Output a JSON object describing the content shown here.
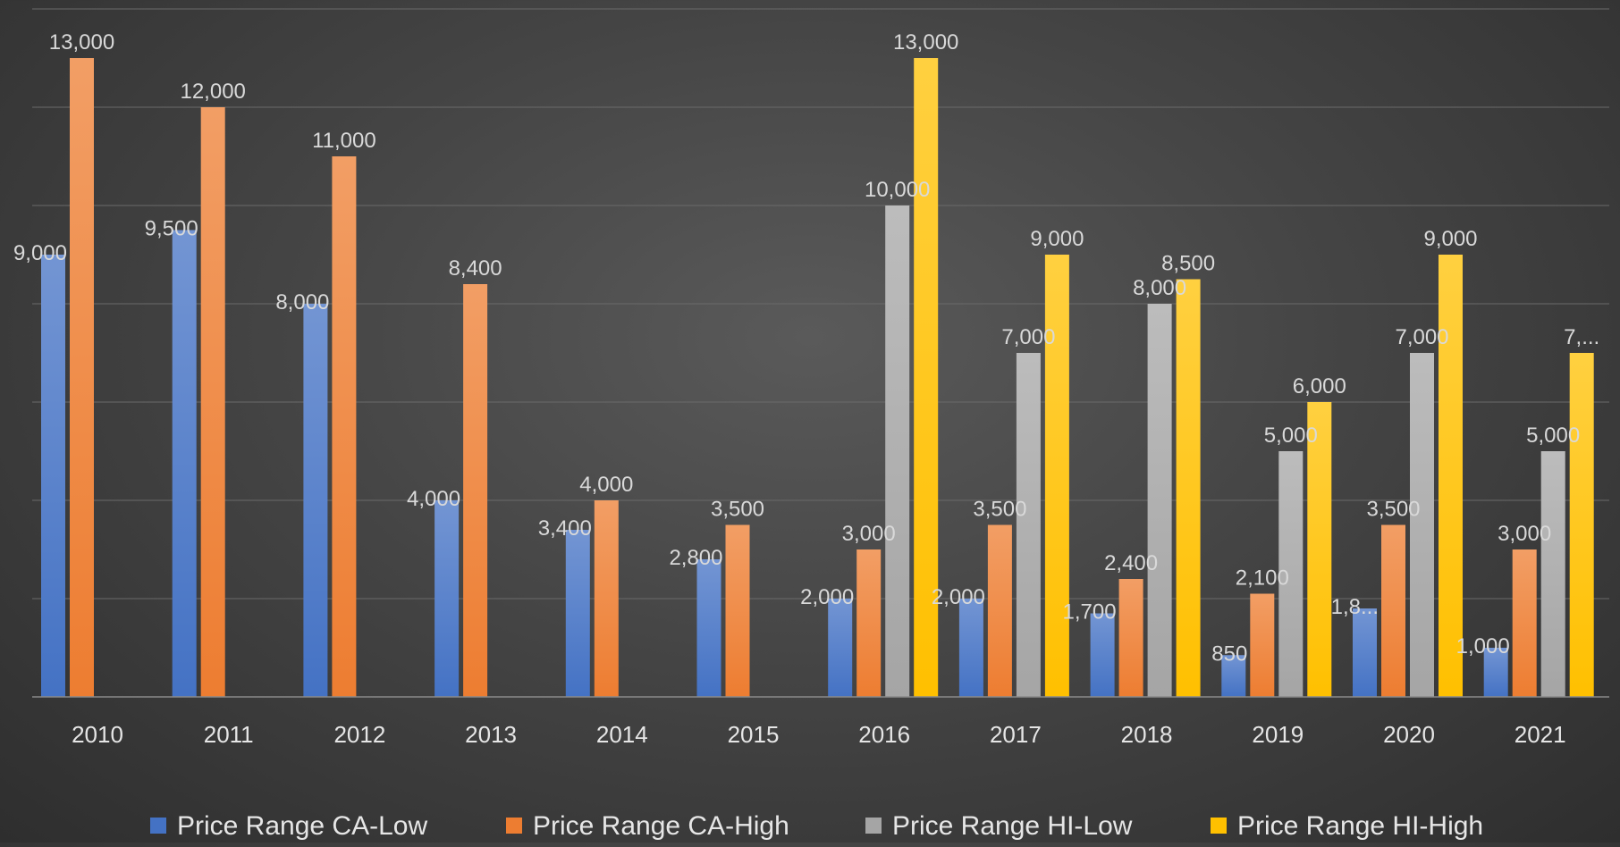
{
  "chart_data": {
    "type": "bar",
    "title": "",
    "xlabel": "",
    "ylabel": "",
    "categories": [
      "2010",
      "2011",
      "2012",
      "2013",
      "2014",
      "2015",
      "2016",
      "2017",
      "2018",
      "2019",
      "2020",
      "2021"
    ],
    "ylim": [
      0,
      14000
    ],
    "grid": true,
    "legend_position": "bottom",
    "series": [
      {
        "name": "Price Range CA-Low",
        "color": "#4472C4",
        "values": [
          9000,
          9500,
          8000,
          4000,
          3400,
          2800,
          2000,
          2000,
          1700,
          850,
          1800,
          1000
        ],
        "labels": [
          "9,000",
          "9,500",
          "8,000",
          "4,000",
          "3,400",
          "2,800",
          "2,000",
          "2,000",
          "1,700",
          "850",
          "1,8...",
          "1,000"
        ]
      },
      {
        "name": "Price Range CA-High",
        "color": "#ED7D31",
        "values": [
          13000,
          12000,
          11000,
          8400,
          4000,
          3500,
          3000,
          3500,
          2400,
          2100,
          3500,
          3000
        ],
        "labels": [
          "13,000",
          "12,000",
          "11,000",
          "8,400",
          "4,000",
          "3,500",
          "3,000",
          "3,500",
          "2,400",
          "2,100",
          "3,500",
          "3,000"
        ]
      },
      {
        "name": "Price Range HI-Low",
        "color": "#A5A5A5",
        "values": [
          null,
          null,
          null,
          null,
          null,
          null,
          10000,
          7000,
          8000,
          5000,
          7000,
          5000
        ],
        "labels": [
          "",
          "",
          "",
          "",
          "",
          "",
          "10,000",
          "7,000",
          "8,000",
          "5,000",
          "7,000",
          "5,000"
        ]
      },
      {
        "name": "Price Range HI-High",
        "color": "#FFC000",
        "values": [
          null,
          null,
          null,
          null,
          null,
          null,
          13000,
          9000,
          8500,
          6000,
          9000,
          7000
        ],
        "labels": [
          "",
          "",
          "",
          "",
          "",
          "",
          "13,000",
          "9,000",
          "8,500",
          "6,000",
          "9,000",
          "7,..."
        ]
      }
    ]
  }
}
